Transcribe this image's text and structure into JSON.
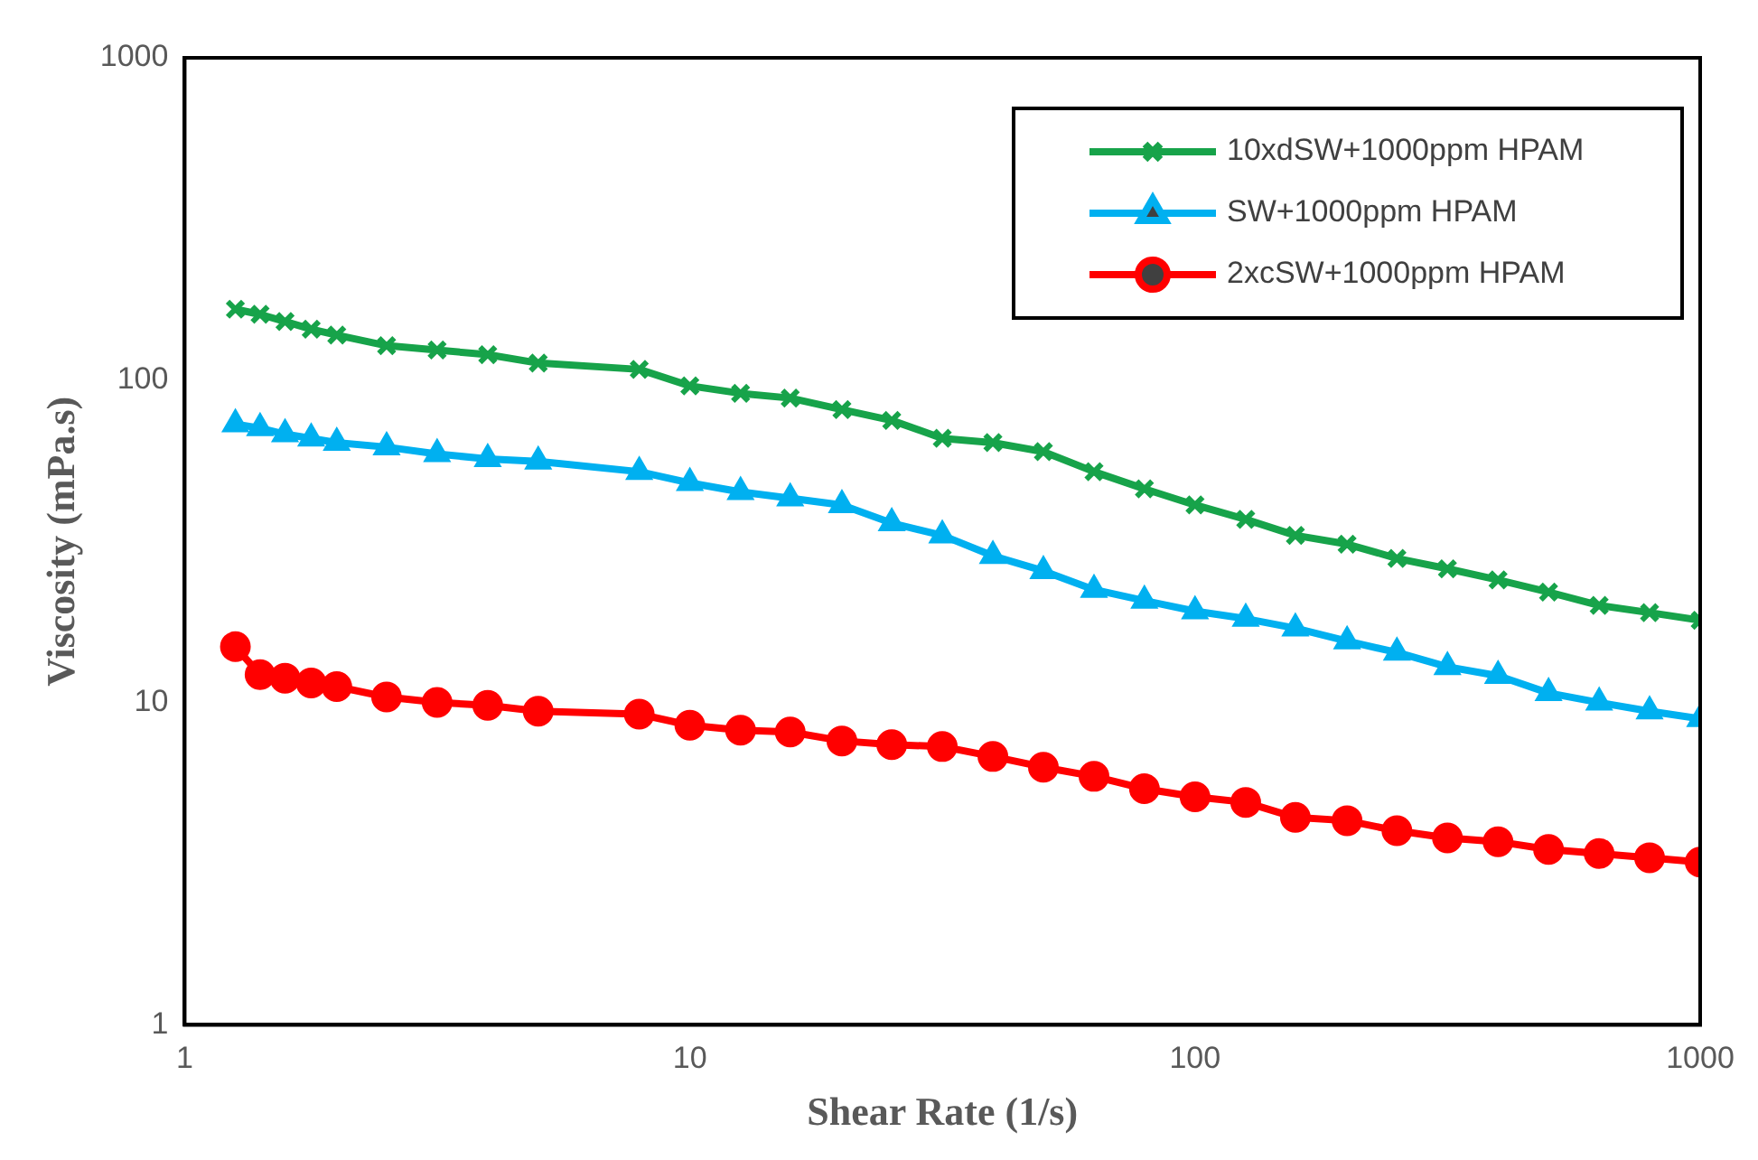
{
  "chart_data": {
    "type": "line",
    "xlabel": "Shear Rate (1/s)",
    "ylabel": "Viscosity (mPa.s)",
    "x": [
      1.26,
      1.41,
      1.58,
      1.78,
      2,
      2.51,
      3.16,
      3.98,
      5.01,
      7.94,
      10,
      12.6,
      15.8,
      20,
      25.1,
      31.6,
      39.8,
      50.1,
      63.1,
      79.4,
      100,
      126,
      158,
      200,
      251,
      316,
      398,
      501,
      631,
      794,
      1000
    ],
    "series": [
      {
        "name": "10xdSW+1000ppm HPAM",
        "color": "#17a34a",
        "marker": "cross",
        "values": [
          166,
          160,
          152,
          144,
          138,
          128,
          124,
          120,
          113,
          108,
          96,
          91,
          88,
          81,
          75,
          66,
          64,
          60,
          52,
          46,
          41,
          37,
          33,
          31,
          28,
          26,
          24,
          22,
          20,
          19,
          18
        ]
      },
      {
        "name": "SW+1000ppm HPAM",
        "color": "#00b0f0",
        "marker": "triangle",
        "values": [
          73,
          71,
          68,
          66,
          64,
          62,
          59,
          57,
          56,
          52,
          48,
          45,
          43,
          41,
          36,
          33,
          28.5,
          25.6,
          22.4,
          20.7,
          19.2,
          18.2,
          17,
          15.5,
          14.3,
          12.9,
          12.1,
          10.7,
          10,
          9.4,
          8.9
        ]
      },
      {
        "name": "2xcSW+1000ppm HPAM",
        "color": "#ff0000",
        "marker": "circle",
        "values": [
          14.9,
          12.2,
          11.9,
          11.5,
          11.2,
          10.4,
          10,
          9.8,
          9.4,
          9.2,
          8.5,
          8.2,
          8.1,
          7.6,
          7.4,
          7.3,
          6.8,
          6.3,
          5.9,
          5.4,
          5.1,
          4.9,
          4.4,
          4.3,
          4,
          3.8,
          3.7,
          3.5,
          3.4,
          3.3,
          3.2
        ]
      }
    ],
    "log": "xy",
    "xlim": [
      1,
      1000
    ],
    "ylim": [
      1,
      1000
    ],
    "xticks": [
      1,
      10,
      100,
      1000
    ],
    "yticks": [
      1,
      10,
      100,
      1000
    ],
    "grid": false,
    "legend": "top right",
    "line_style": "solid"
  }
}
